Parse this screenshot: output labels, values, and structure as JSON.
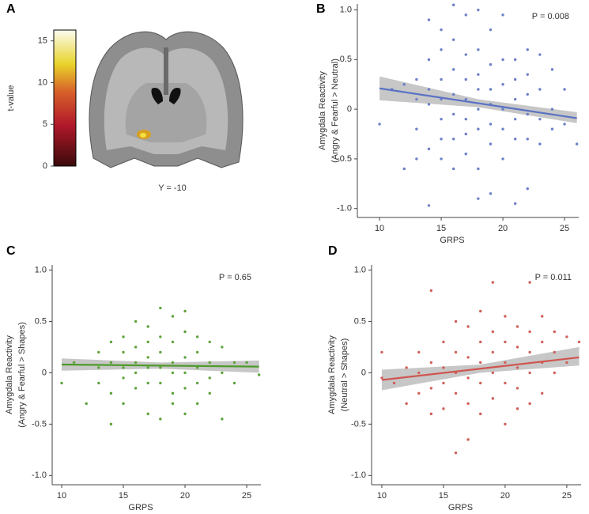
{
  "chart_data": [
    {
      "type": "colorbar",
      "panel": "A",
      "label": "t-value",
      "image_label": "Y = -10",
      "ylim": [
        0,
        16.3
      ],
      "yticks": [
        0,
        5,
        10,
        15
      ]
    },
    {
      "type": "scatter",
      "panel": "B",
      "xlabel": "GRPS",
      "ylabel": [
        "Amygdala Reactivity",
        "(Angry & Fearful > Neutral)"
      ],
      "p_value": "P = 0.008",
      "color": "#6b7fc8",
      "fit_color": "#5a72c4",
      "xlim": [
        8.2,
        26.15
      ],
      "ylim": [
        -1.09,
        1.06
      ],
      "xticks": [
        10,
        15,
        20,
        25
      ],
      "yticks": [
        {
          "value": 1,
          "label": "1.0"
        },
        0.5,
        0,
        -0.5,
        {
          "value": -1,
          "label": "-1.0"
        }
      ],
      "x": [
        10,
        11,
        12,
        12,
        13,
        13,
        13,
        13,
        14,
        14,
        14,
        14,
        14,
        14,
        15,
        15,
        15,
        15,
        15,
        15,
        15,
        16,
        16,
        16,
        16,
        16,
        16,
        16,
        17,
        17,
        17,
        17,
        17,
        17,
        17,
        18,
        18,
        18,
        18,
        18,
        18,
        18,
        18,
        19,
        19,
        19,
        19,
        19,
        19,
        19,
        20,
        20,
        20,
        20,
        20,
        20,
        21,
        21,
        21,
        21,
        21,
        21,
        22,
        22,
        22,
        22,
        22,
        22,
        23,
        23,
        23,
        23,
        24,
        24,
        24,
        25,
        25,
        26
      ],
      "y": [
        -0.15,
        0.2,
        -0.6,
        0.25,
        -0.5,
        0.3,
        0.1,
        -0.2,
        -0.97,
        0.9,
        0.5,
        0.2,
        -0.4,
        0.05,
        -0.3,
        0.8,
        0.6,
        0.3,
        0.1,
        -0.1,
        -0.5,
        1.05,
        0.7,
        0.4,
        0.15,
        -0.05,
        -0.3,
        -0.6,
        0.95,
        0.55,
        0.3,
        0.1,
        -0.1,
        -0.25,
        -0.45,
        1.0,
        0.6,
        0.35,
        0.2,
        0.0,
        -0.2,
        -0.6,
        -0.9,
        0.8,
        0.45,
        0.2,
        0.05,
        -0.15,
        -0.35,
        -0.85,
        0.95,
        0.5,
        0.25,
        0.0,
        -0.2,
        -0.5,
        0.5,
        0.3,
        0.1,
        -0.1,
        -0.3,
        -0.95,
        0.6,
        0.35,
        0.15,
        -0.05,
        -0.3,
        -0.8,
        0.55,
        0.2,
        -0.1,
        -0.35,
        0.4,
        0.0,
        -0.2,
        0.2,
        -0.15,
        -0.35
      ],
      "fit": {
        "x": [
          10,
          26
        ],
        "y": [
          0.21,
          -0.09
        ]
      },
      "band": {
        "x": [
          10,
          18,
          26
        ],
        "lower": [
          0.09,
          0.02,
          -0.14
        ],
        "upper": [
          0.33,
          0.1,
          -0.03
        ]
      }
    },
    {
      "type": "scatter",
      "panel": "C",
      "xlabel": "GRPS",
      "ylabel": [
        "Amygdala Reactivity",
        "(Angry & Fearful > Shapes)"
      ],
      "p_value": "P = 0.65",
      "color": "#5ea33a",
      "fit_color": "#4f9a2c",
      "xlim": [
        9.23,
        26.15
      ],
      "ylim": [
        -1.09,
        1.05
      ],
      "xticks": [
        10,
        15,
        20,
        25
      ],
      "yticks": [
        {
          "value": 1,
          "label": "1.0"
        },
        0.5,
        0,
        -0.5,
        {
          "value": -1,
          "label": "-1.0"
        }
      ],
      "x": [
        10,
        11,
        12,
        13,
        13,
        13,
        14,
        14,
        14,
        14,
        15,
        15,
        15,
        15,
        15,
        16,
        16,
        16,
        16,
        16,
        17,
        17,
        17,
        17,
        17,
        17,
        18,
        18,
        18,
        18,
        18,
        18,
        19,
        19,
        19,
        19,
        19,
        19,
        20,
        20,
        20,
        20,
        20,
        20,
        21,
        21,
        21,
        21,
        21,
        22,
        22,
        22,
        22,
        23,
        23,
        23,
        24,
        24,
        25,
        26
      ],
      "y": [
        -0.1,
        0.1,
        -0.3,
        0.2,
        -0.1,
        0.05,
        -0.5,
        0.3,
        0.1,
        -0.2,
        0.35,
        0.2,
        0.05,
        -0.05,
        -0.3,
        0.5,
        0.25,
        0.1,
        0.0,
        -0.15,
        0.45,
        0.3,
        0.15,
        0.05,
        -0.1,
        -0.4,
        0.63,
        0.35,
        0.2,
        0.05,
        -0.1,
        -0.45,
        0.55,
        0.3,
        0.1,
        0.0,
        -0.2,
        -0.3,
        0.6,
        0.4,
        0.15,
        0.0,
        -0.15,
        -0.4,
        0.35,
        0.2,
        0.05,
        -0.1,
        -0.3,
        0.3,
        0.1,
        -0.05,
        -0.2,
        0.25,
        0.0,
        -0.45,
        0.1,
        -0.1,
        0.1,
        -0.02
      ],
      "fit": {
        "x": [
          10,
          26
        ],
        "y": [
          0.08,
          0.06
        ]
      },
      "band": {
        "x": [
          10,
          18,
          26
        ],
        "lower": [
          0.02,
          0.04,
          0.0
        ],
        "upper": [
          0.14,
          0.1,
          0.12
        ]
      }
    },
    {
      "type": "scatter",
      "panel": "D",
      "xlabel": "GRPS",
      "ylabel": [
        "Amygdala Reactivity",
        "(Neutral > Shapes)"
      ],
      "p_value": "P = 0.011",
      "color": "#d0605a",
      "fit_color": "#cf5650",
      "xlim": [
        9.17,
        26.16
      ],
      "ylim": [
        -1.09,
        1.05
      ],
      "xticks": [
        10,
        15,
        20,
        25
      ],
      "yticks": [
        {
          "value": 1,
          "label": "1.0"
        },
        0.5,
        0,
        -0.5,
        {
          "value": -1,
          "label": "-1.0"
        }
      ],
      "x": [
        10,
        10,
        11,
        12,
        12,
        13,
        13,
        13,
        14,
        14,
        14,
        14,
        15,
        15,
        15,
        15,
        16,
        16,
        16,
        16,
        16,
        17,
        17,
        17,
        17,
        17,
        18,
        18,
        18,
        18,
        18,
        19,
        19,
        19,
        19,
        19,
        20,
        20,
        20,
        20,
        20,
        21,
        21,
        21,
        21,
        21,
        22,
        22,
        22,
        22,
        22,
        23,
        23,
        23,
        23,
        24,
        24,
        24,
        25,
        25,
        26
      ],
      "y": [
        0.2,
        -0.05,
        -0.1,
        -0.3,
        0.05,
        0.2,
        -0.2,
        0.0,
        0.8,
        0.1,
        -0.15,
        -0.4,
        0.3,
        0.05,
        -0.1,
        -0.35,
        0.5,
        0.2,
        0.0,
        -0.2,
        -0.78,
        0.45,
        0.15,
        -0.05,
        -0.3,
        -0.65,
        0.6,
        0.3,
        0.1,
        -0.1,
        -0.4,
        0.88,
        0.4,
        0.2,
        0.0,
        -0.25,
        0.55,
        0.3,
        0.1,
        -0.1,
        -0.5,
        0.45,
        0.25,
        0.05,
        -0.15,
        -0.35,
        0.88,
        0.4,
        0.2,
        0.0,
        -0.3,
        0.55,
        0.3,
        0.1,
        -0.2,
        0.4,
        0.2,
        0.0,
        0.35,
        0.1,
        0.3
      ],
      "fit": {
        "x": [
          10,
          26
        ],
        "y": [
          -0.07,
          0.15
        ]
      },
      "band": {
        "x": [
          10,
          18,
          26
        ],
        "lower": [
          -0.17,
          0.0,
          0.07
        ],
        "upper": [
          0.03,
          0.08,
          0.25
        ]
      }
    }
  ]
}
